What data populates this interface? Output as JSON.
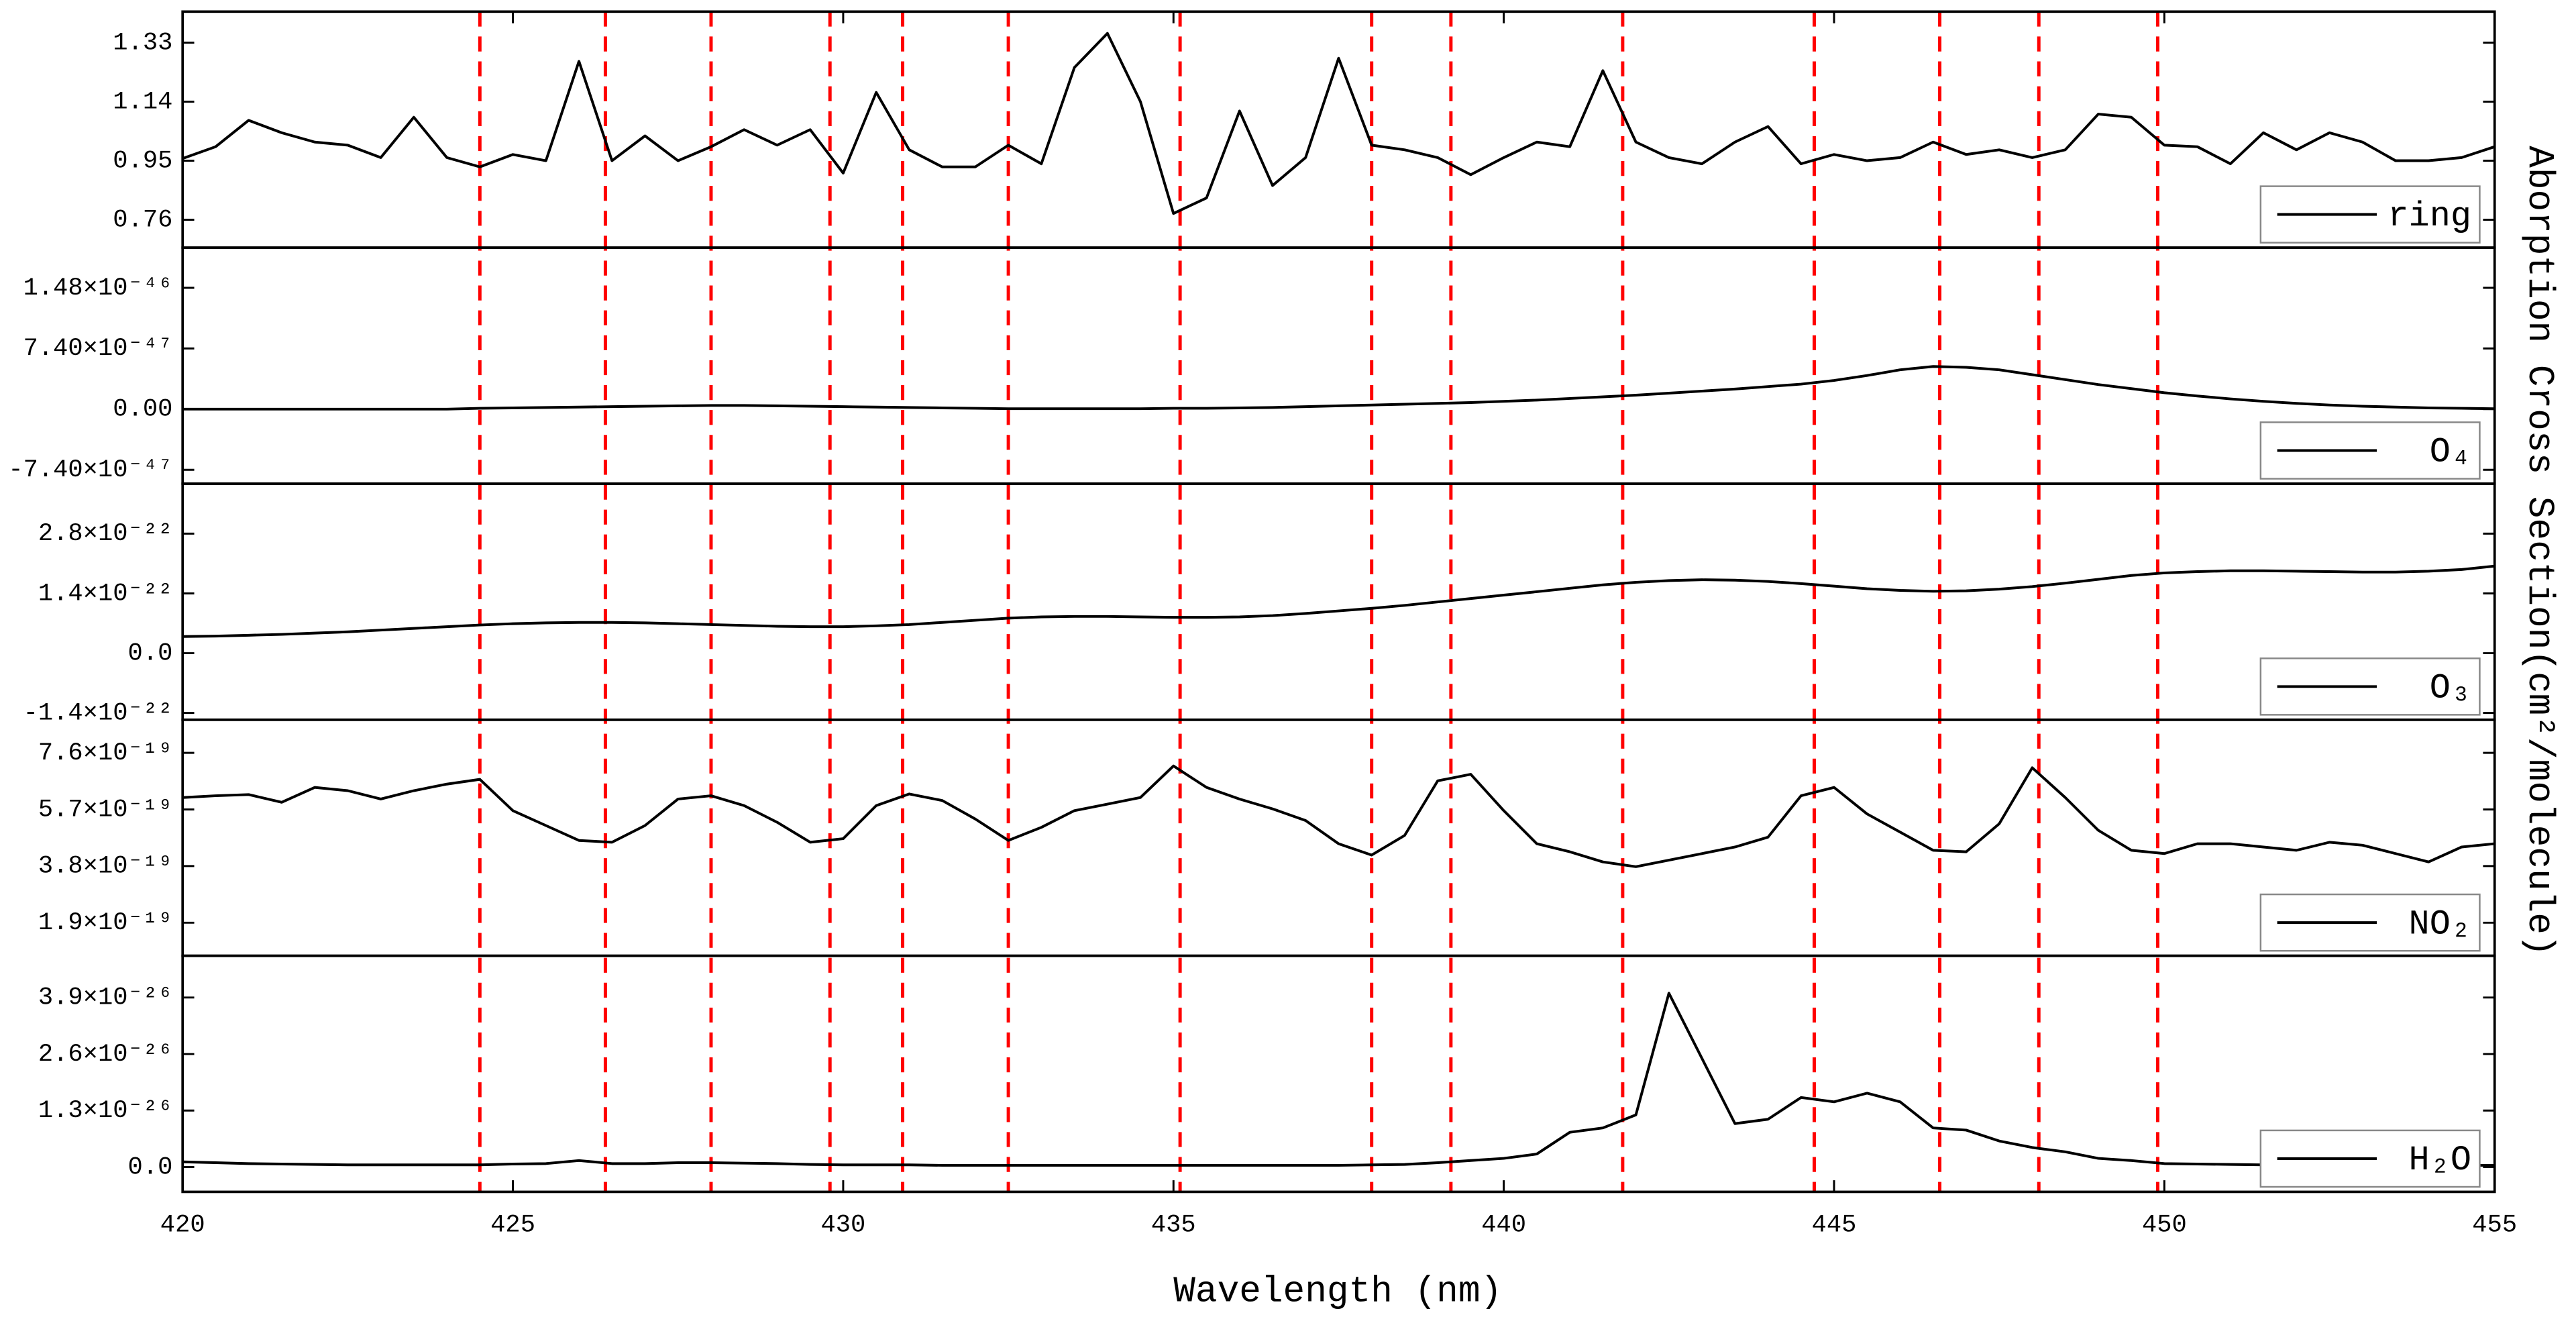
{
  "chart_data": {
    "type": "line",
    "xlabel": "Wavelength (nm)",
    "ylabel": "Aborption Cross Section(cm²/molecule)",
    "xlim": [
      420,
      455
    ],
    "xticks": [
      420,
      425,
      430,
      435,
      440,
      445,
      450,
      455
    ],
    "vlines": [
      424.5,
      426.4,
      428.0,
      429.8,
      430.9,
      432.5,
      435.1,
      438.0,
      439.2,
      441.8,
      444.7,
      446.6,
      448.1,
      449.9
    ],
    "vline_color": "#ff0000",
    "x": [
      420,
      420.5,
      421,
      421.5,
      422,
      422.5,
      423,
      423.5,
      424,
      424.5,
      425,
      425.5,
      426,
      426.5,
      427,
      427.5,
      428,
      428.5,
      429,
      429.5,
      430,
      430.5,
      431,
      431.5,
      432,
      432.5,
      433,
      433.5,
      434,
      434.5,
      435,
      435.5,
      436,
      436.5,
      437,
      437.5,
      438,
      438.5,
      439,
      439.5,
      440,
      440.5,
      441,
      441.5,
      442,
      442.5,
      443,
      443.5,
      444,
      444.5,
      445,
      445.5,
      446,
      446.5,
      447,
      447.5,
      448,
      448.5,
      449,
      449.5,
      450,
      450.5,
      451,
      451.5,
      452,
      452.5,
      453,
      453.5,
      454,
      454.5,
      455
    ],
    "series": [
      {
        "name": "ring",
        "color": "#000000",
        "ylim": [
          0.67,
          1.43
        ],
        "yticks": [
          0.76,
          0.95,
          1.14,
          1.33
        ],
        "values": [
          0.957,
          0.995,
          1.08,
          1.04,
          1.01,
          1.0,
          0.96,
          1.09,
          0.96,
          0.93,
          0.97,
          0.95,
          1.27,
          0.95,
          1.03,
          0.95,
          0.995,
          1.05,
          1.0,
          1.05,
          0.91,
          1.17,
          0.985,
          0.93,
          0.93,
          1.0,
          0.94,
          1.25,
          1.36,
          1.14,
          0.78,
          0.83,
          1.11,
          0.87,
          0.96,
          1.28,
          1.0,
          0.985,
          0.96,
          0.905,
          0.96,
          1.01,
          0.995,
          1.24,
          1.01,
          0.96,
          0.94,
          1.01,
          1.06,
          0.94,
          0.97,
          0.95,
          0.96,
          1.01,
          0.97,
          0.985,
          0.96,
          0.985,
          1.1,
          1.09,
          1.0,
          0.995,
          0.94,
          1.04,
          0.985,
          1.04,
          1.01,
          0.95,
          0.95,
          0.96,
          0.995
        ]
      },
      {
        "name": "O₄",
        "color": "#000000",
        "ylim": [
          -9.1e-47,
          1.97e-46
        ],
        "yticks": [
          {
            "value": -7.4e-47,
            "label": "-7.40×10⁻⁴⁷"
          },
          {
            "value": 0,
            "label": "0.00"
          },
          {
            "value": 7.4e-47,
            "label": "7.40×10⁻⁴⁷"
          },
          {
            "value": 1.48e-46,
            "label": "1.48×10⁻⁴⁶"
          }
        ],
        "values": [
          0,
          0,
          0,
          0,
          0,
          0,
          0,
          0,
          0,
          1e-48,
          1.5e-48,
          2e-48,
          2.5e-48,
          3e-48,
          3.5e-48,
          4e-48,
          4.5e-48,
          4.5e-48,
          4e-48,
          3.5e-48,
          3e-48,
          2.5e-48,
          2e-48,
          1.5e-48,
          1e-48,
          5e-49,
          5e-49,
          5e-49,
          5e-49,
          5e-49,
          1e-48,
          1e-48,
          1.5e-48,
          2e-48,
          3e-48,
          4e-48,
          5e-48,
          6e-48,
          7e-48,
          8e-48,
          9.5e-48,
          1.1e-47,
          1.3e-47,
          1.5e-47,
          1.7e-47,
          1.95e-47,
          2.2e-47,
          2.45e-47,
          2.75e-47,
          3.05e-47,
          3.5e-47,
          4.1e-47,
          4.8e-47,
          5.2e-47,
          5.1e-47,
          4.8e-47,
          4.2e-47,
          3.6e-47,
          3e-47,
          2.5e-47,
          2e-47,
          1.6e-47,
          1.25e-47,
          9.5e-48,
          7e-48,
          5e-48,
          3.5e-48,
          2.5e-48,
          1.5e-48,
          1e-48,
          5e-49
        ]
      },
      {
        "name": "O₃",
        "color": "#000000",
        "ylim": [
          -1.56e-22,
          3.97e-22
        ],
        "yticks": [
          {
            "value": -1.4e-22,
            "label": "-1.4×10⁻²²"
          },
          {
            "value": 0,
            "label": "0.0"
          },
          {
            "value": 1.4e-22,
            "label": "1.4×10⁻²²"
          },
          {
            "value": 2.8e-22,
            "label": "2.8×10⁻²²"
          }
        ],
        "values": [
          3.9e-23,
          4e-23,
          4.2e-23,
          4.4e-23,
          4.7e-23,
          5e-23,
          5.4e-23,
          5.8e-23,
          6.2e-23,
          6.6e-23,
          6.9e-23,
          7.1e-23,
          7.2e-23,
          7.2e-23,
          7.1e-23,
          6.9e-23,
          6.7e-23,
          6.5e-23,
          6.3e-23,
          6.2e-23,
          6.2e-23,
          6.4e-23,
          6.7e-23,
          7.2e-23,
          7.7e-23,
          8.2e-23,
          8.5e-23,
          8.6e-23,
          8.6e-23,
          8.5e-23,
          8.4e-23,
          8.4e-23,
          8.5e-23,
          8.8e-23,
          9.3e-23,
          9.9e-23,
          1.05e-22,
          1.12e-22,
          1.2e-22,
          1.28e-22,
          1.36e-22,
          1.44e-22,
          1.52e-22,
          1.6e-22,
          1.66e-22,
          1.7e-22,
          1.72e-22,
          1.71e-22,
          1.68e-22,
          1.63e-22,
          1.57e-22,
          1.51e-22,
          1.47e-22,
          1.45e-22,
          1.46e-22,
          1.5e-22,
          1.56e-22,
          1.64e-22,
          1.73e-22,
          1.82e-22,
          1.88e-22,
          1.91e-22,
          1.93e-22,
          1.93e-22,
          1.92e-22,
          1.91e-22,
          1.9e-22,
          1.9e-22,
          1.92e-22,
          1.96e-22,
          2.04e-22
        ]
      },
      {
        "name": "NO₂",
        "color": "#000000",
        "ylim": [
          7.9e-20,
          8.71e-19
        ],
        "yticks": [
          {
            "value": 1.9e-19,
            "label": "1.9×10⁻¹⁹"
          },
          {
            "value": 3.8e-19,
            "label": "3.8×10⁻¹⁹"
          },
          {
            "value": 5.7e-19,
            "label": "5.7×10⁻¹⁹"
          },
          {
            "value": 7.6e-19,
            "label": "7.6×10⁻¹⁹"
          }
        ],
        "values": [
          6.1e-19,
          6.16e-19,
          6.2e-19,
          5.94e-19,
          6.44e-19,
          6.33e-19,
          6.05e-19,
          6.33e-19,
          6.55e-19,
          6.71e-19,
          5.66e-19,
          5.16e-19,
          4.66e-19,
          4.6e-19,
          5.16e-19,
          6.05e-19,
          6.16e-19,
          5.83e-19,
          5.27e-19,
          4.6e-19,
          4.72e-19,
          5.83e-19,
          6.22e-19,
          6e-19,
          5.38e-19,
          4.66e-19,
          5.1e-19,
          5.66e-19,
          5.88e-19,
          6.1e-19,
          7.16e-19,
          6.44e-19,
          6.05e-19,
          5.72e-19,
          5.33e-19,
          4.55e-19,
          4.17e-19,
          4.83e-19,
          6.66e-19,
          6.88e-19,
          5.66e-19,
          4.55e-19,
          4.28e-19,
          3.94e-19,
          3.78e-19,
          4e-19,
          4.22e-19,
          4.44e-19,
          4.77e-19,
          6.16e-19,
          6.44e-19,
          5.55e-19,
          4.94e-19,
          4.33e-19,
          4.28e-19,
          5.22e-19,
          7.1e-19,
          6.1e-19,
          5e-19,
          4.33e-19,
          4.22e-19,
          4.55e-19,
          4.55e-19,
          4.44e-19,
          4.33e-19,
          4.6e-19,
          4.5e-19,
          4.22e-19,
          3.94e-19,
          4.44e-19,
          4.55e-19
        ]
      },
      {
        "name": "H₂O",
        "color": "#000000",
        "ylim": [
          -5.7e-27,
          4.86e-26
        ],
        "yticks": [
          {
            "value": 0,
            "label": "0.0"
          },
          {
            "value": 1.3e-26,
            "label": "1.3×10⁻²⁶"
          },
          {
            "value": 2.6e-26,
            "label": "2.6×10⁻²⁶"
          },
          {
            "value": 3.9e-26,
            "label": "3.9×10⁻²⁶"
          }
        ],
        "values": [
          1.2e-27,
          1e-27,
          8e-28,
          7e-28,
          6e-28,
          5e-28,
          5e-28,
          5e-28,
          5e-28,
          5e-28,
          7e-28,
          8e-28,
          1.5e-27,
          8e-28,
          8e-28,
          1e-27,
          1e-27,
          9e-28,
          8e-28,
          6e-28,
          5e-28,
          5e-28,
          5e-28,
          4e-28,
          4e-28,
          4e-28,
          4e-28,
          4e-28,
          4e-28,
          4e-28,
          4e-28,
          4e-28,
          4e-28,
          4e-28,
          4e-28,
          4e-28,
          5e-28,
          6e-28,
          1e-27,
          1.5e-27,
          2e-27,
          3e-27,
          8e-27,
          9e-27,
          1.2e-26,
          4e-26,
          2.5e-26,
          1e-26,
          1.1e-26,
          1.6e-26,
          1.5e-26,
          1.7e-26,
          1.5e-26,
          9e-27,
          8.5e-27,
          6e-27,
          4.5e-27,
          3.5e-27,
          2e-27,
          1.5e-27,
          8e-28,
          7e-28,
          6e-28,
          5e-28,
          5e-28,
          5e-28,
          5e-28,
          4e-28,
          4e-28,
          4e-28,
          4e-28
        ]
      }
    ]
  }
}
